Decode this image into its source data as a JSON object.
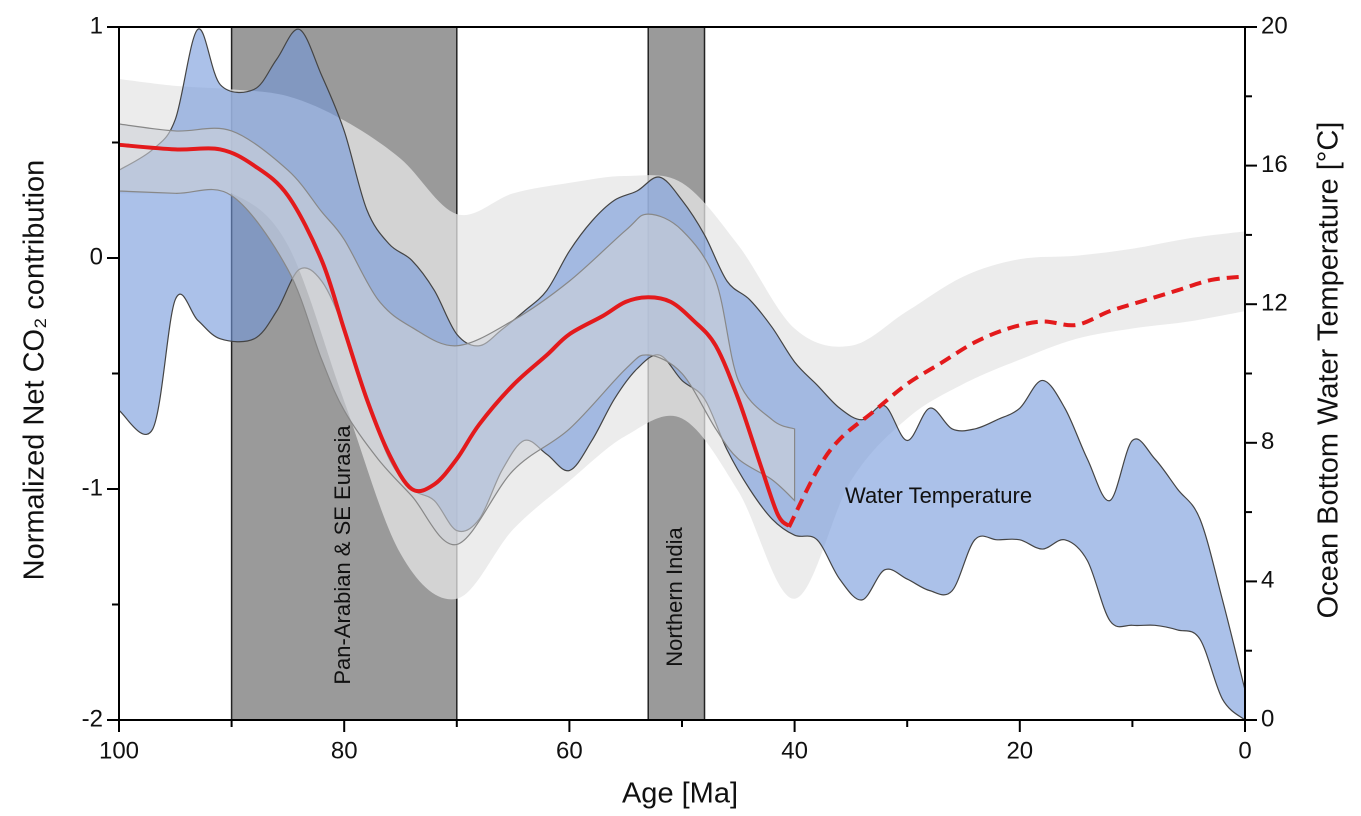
{
  "chart_data": {
    "type": "band-line",
    "xlabel": "Age [Ma]",
    "ylabel": "Normalized Net CO₂ contribution",
    "y2label": "Ocean Bottom Water Temperature [°C]",
    "xlim": [
      100,
      0
    ],
    "ylim": [
      -2,
      1
    ],
    "y2lim": [
      0,
      20
    ],
    "xticks": [
      100,
      80,
      60,
      40,
      20,
      0
    ],
    "xminorticks": [
      90,
      70,
      50,
      30,
      10
    ],
    "yticks": [
      1,
      0,
      -1,
      -2
    ],
    "yminorticks": [
      0.5,
      -0.5,
      -1.5
    ],
    "y2ticks": [
      20,
      16,
      12,
      8,
      4,
      0
    ],
    "y2minorticks": [
      18,
      14,
      10,
      6,
      2
    ],
    "regions": [
      {
        "from": 90,
        "to": 70,
        "label": "Pan-Arabian & SE Eurasia",
        "color": "#9a9a9a"
      },
      {
        "from": 53,
        "to": 48,
        "label": "Northern India",
        "color": "#9a9a9a"
      }
    ],
    "annotations": [
      {
        "text": "Water Temperature"
      }
    ],
    "bands": [
      {
        "axis": "y2",
        "color": "#e6e6e6",
        "x": [
          100,
          95,
          90,
          85,
          80,
          75,
          70,
          65,
          60,
          55,
          50,
          45,
          40,
          35,
          30,
          25,
          20,
          15,
          10,
          5,
          0
        ],
        "upper": [
          18.5,
          18.3,
          18.2,
          18,
          17.3,
          16.2,
          14.6,
          15.2,
          15.5,
          15.7,
          15.5,
          13.7,
          11.3,
          10.8,
          11.8,
          12.8,
          13.3,
          13.4,
          13.6,
          13.9,
          14.1
        ],
        "lower": [
          15.2,
          15.2,
          15.2,
          13.7,
          9.2,
          4.8,
          3.5,
          5.5,
          6.9,
          8.2,
          8.7,
          6.6,
          3.5,
          6.9,
          8.7,
          9.7,
          10.4,
          11,
          11.3,
          11.5,
          11.8
        ]
      },
      {
        "axis": "y",
        "color": "#7397da",
        "x": [
          100,
          97,
          95,
          93,
          91,
          88,
          86,
          84,
          82,
          80,
          78,
          76,
          74,
          72,
          70,
          68,
          66,
          64,
          62,
          60,
          58,
          56,
          54,
          52,
          50,
          48,
          46,
          44,
          42,
          40,
          38,
          36,
          34,
          32,
          30,
          28,
          26,
          24,
          22,
          20,
          18,
          16,
          14,
          12,
          10,
          8,
          6,
          4,
          2,
          0
        ],
        "upper": [
          0.38,
          0.47,
          0.6,
          0.99,
          0.75,
          0.73,
          0.86,
          0.99,
          0.79,
          0.55,
          0.21,
          0.06,
          -0.01,
          -0.14,
          -0.33,
          -0.38,
          -0.31,
          -0.23,
          -0.14,
          0.03,
          0.16,
          0.25,
          0.29,
          0.35,
          0.25,
          0.1,
          -0.1,
          -0.18,
          -0.3,
          -0.45,
          -0.55,
          -0.65,
          -0.7,
          -0.64,
          -0.79,
          -0.65,
          -0.74,
          -0.74,
          -0.7,
          -0.65,
          -0.53,
          -0.65,
          -0.87,
          -1.05,
          -0.79,
          -0.87,
          -1.0,
          -1.13,
          -1.48,
          -1.87
        ],
        "lower": [
          -0.66,
          -0.74,
          -0.18,
          -0.27,
          -0.35,
          -0.35,
          -0.23,
          -0.05,
          -0.1,
          -0.31,
          -0.61,
          -0.87,
          -1.0,
          -1.05,
          -1.18,
          -1.13,
          -0.92,
          -0.79,
          -0.85,
          -0.92,
          -0.79,
          -0.61,
          -0.48,
          -0.42,
          -0.53,
          -0.61,
          -0.83,
          -1.0,
          -1.13,
          -1.2,
          -1.22,
          -1.39,
          -1.48,
          -1.35,
          -1.39,
          -1.44,
          -1.44,
          -1.22,
          -1.22,
          -1.22,
          -1.26,
          -1.22,
          -1.31,
          -1.57,
          -1.59,
          -1.59,
          -1.61,
          -1.65,
          -1.91,
          -2
        ]
      },
      {
        "axis": "y",
        "color": "#cfd2d8",
        "x": [
          100,
          95,
          90,
          85,
          82,
          80,
          77,
          74,
          70,
          65,
          60,
          55,
          53,
          50,
          47,
          45,
          42,
          40
        ],
        "upper": [
          0.58,
          0.55,
          0.55,
          0.38,
          0.2,
          0.08,
          -0.18,
          -0.3,
          -0.38,
          -0.27,
          -0.1,
          0.12,
          0.19,
          0.12,
          -0.1,
          -0.53,
          -0.7,
          -0.74
        ],
        "lower": [
          0.29,
          0.28,
          0.27,
          -0.05,
          -0.44,
          -0.66,
          -0.87,
          -1.03,
          -1.24,
          -0.92,
          -0.74,
          -0.48,
          -0.42,
          -0.5,
          -0.74,
          -0.87,
          -0.96,
          -1.05
        ]
      }
    ],
    "series": [
      {
        "axis": "y",
        "color": "#e31a1c",
        "dash": false,
        "x": [
          100,
          95,
          91,
          88,
          85,
          82,
          80,
          78,
          76,
          74,
          72,
          70,
          68,
          65,
          62,
          60,
          57,
          55,
          53,
          51,
          49,
          47,
          45,
          43,
          41.5,
          40.5
        ],
        "values": [
          0.49,
          0.47,
          0.47,
          0.4,
          0.27,
          -0.01,
          -0.31,
          -0.61,
          -0.85,
          -1.0,
          -0.98,
          -0.87,
          -0.72,
          -0.55,
          -0.42,
          -0.33,
          -0.25,
          -0.19,
          -0.17,
          -0.19,
          -0.27,
          -0.38,
          -0.61,
          -0.9,
          -1.11,
          -1.16
        ]
      },
      {
        "axis": "y2",
        "color": "#e31a1c",
        "dash": true,
        "x": [
          40.5,
          38,
          36,
          33,
          30,
          27,
          24,
          21,
          18,
          15,
          12,
          9,
          6,
          3,
          0
        ],
        "values": [
          5.57,
          7.2,
          8.1,
          8.9,
          9.7,
          10.3,
          10.9,
          11.3,
          11.5,
          11.4,
          11.8,
          12.1,
          12.4,
          12.7,
          12.8
        ]
      }
    ]
  }
}
